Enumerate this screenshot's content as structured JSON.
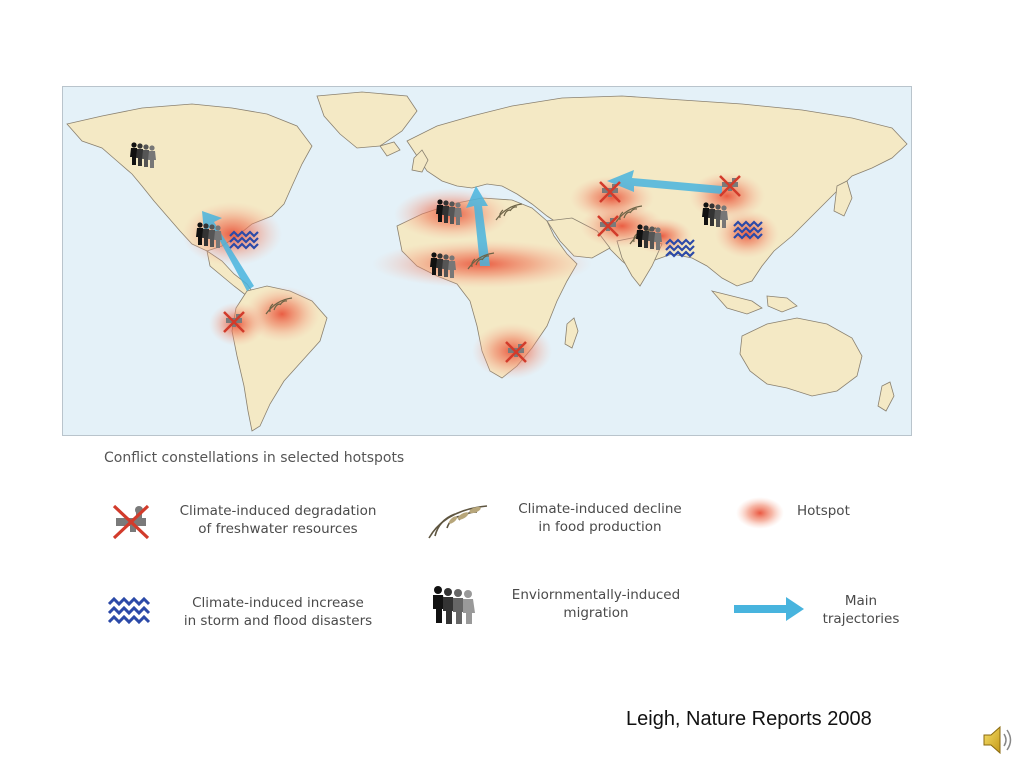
{
  "map": {
    "colors": {
      "ocean": "#e4f1f8",
      "land": "#f4e9c5",
      "border": "#8a8170",
      "hotspot": "#ec5a3c",
      "trajectory": "#48b4de",
      "storm": "#2c4aa8"
    }
  },
  "legend": {
    "title": "Conflict constellations in selected hotspots",
    "items": [
      {
        "icon": "crossed-tap-icon",
        "line1": "Climate-induced degradation",
        "line2": "of freshwater resources"
      },
      {
        "icon": "wheat-icon",
        "line1": "Climate-induced decline",
        "line2": "in food production"
      },
      {
        "icon": "hotspot-icon",
        "line1": "Hotspot",
        "line2": ""
      },
      {
        "icon": "storm-waves-icon",
        "line1": "Climate-induced increase",
        "line2": "in storm and flood disasters"
      },
      {
        "icon": "migration-people-icon",
        "line1": "Enviornmentally-induced",
        "line2": "migration"
      },
      {
        "icon": "arrow-icon",
        "line1": "Main",
        "line2": "trajectories"
      }
    ]
  },
  "source": "Leigh, Nature Reports 2008",
  "speaker_icon": "speaker-icon"
}
